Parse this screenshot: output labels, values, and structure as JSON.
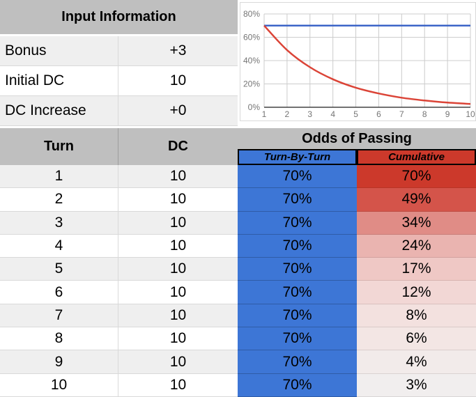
{
  "input_info": {
    "title": "Input Information",
    "rows": [
      {
        "label": "Bonus",
        "value": "+3"
      },
      {
        "label": "Initial DC",
        "value": "10"
      },
      {
        "label": "DC Increase",
        "value": "+0"
      }
    ]
  },
  "table": {
    "col_turn": "Turn",
    "col_dc": "DC",
    "odds_header": "Odds of Passing",
    "sub_turn_by_turn": "Turn-By-Turn",
    "sub_cumulative": "Cumulative",
    "rows": [
      {
        "turn": "1",
        "dc": "10",
        "turn_by_turn": "70%",
        "cumulative": "70%",
        "cum_bg": "#cc392b"
      },
      {
        "turn": "2",
        "dc": "10",
        "turn_by_turn": "70%",
        "cumulative": "49%",
        "cum_bg": "#d4544a"
      },
      {
        "turn": "3",
        "dc": "10",
        "turn_by_turn": "70%",
        "cumulative": "34%",
        "cum_bg": "#e08c86"
      },
      {
        "turn": "4",
        "dc": "10",
        "turn_by_turn": "70%",
        "cumulative": "24%",
        "cum_bg": "#eab4b0"
      },
      {
        "turn": "5",
        "dc": "10",
        "turn_by_turn": "70%",
        "cumulative": "17%",
        "cum_bg": "#efc8c5"
      },
      {
        "turn": "6",
        "dc": "10",
        "turn_by_turn": "70%",
        "cumulative": "12%",
        "cum_bg": "#f2d7d5"
      },
      {
        "turn": "7",
        "dc": "10",
        "turn_by_turn": "70%",
        "cumulative": "8%",
        "cum_bg": "#f3e1df"
      },
      {
        "turn": "8",
        "dc": "10",
        "turn_by_turn": "70%",
        "cumulative": "6%",
        "cum_bg": "#f3e6e4"
      },
      {
        "turn": "9",
        "dc": "10",
        "turn_by_turn": "70%",
        "cumulative": "4%",
        "cum_bg": "#f2ebea"
      },
      {
        "turn": "10",
        "dc": "10",
        "turn_by_turn": "70%",
        "cumulative": "3%",
        "cum_bg": "#f1eeee"
      }
    ]
  },
  "colors": {
    "header_gray": "#bfbfbf",
    "header_gray_divider": "#9e9e9e",
    "row_band_odd": "#efefef",
    "row_band_even": "#ffffff",
    "grid_border": "#d9d9d9",
    "blue_fill": "#3d76d6",
    "red_header_fill": "#cc392b",
    "subheader_border": "#000000",
    "chart_grid": "#cccccc",
    "chart_axis": "#424242",
    "chart_text": "#757575"
  },
  "chart_data": {
    "type": "line",
    "title": "",
    "xlabel": "",
    "ylabel": "",
    "x": [
      1,
      2,
      3,
      4,
      5,
      6,
      7,
      8,
      9,
      10
    ],
    "xtick_labels": [
      "1",
      "2",
      "3",
      "4",
      "5",
      "6",
      "7",
      "8",
      "9",
      "10"
    ],
    "xlim": [
      1,
      10
    ],
    "ylim": [
      0,
      80
    ],
    "yticks": [
      0,
      20,
      40,
      60,
      80
    ],
    "ytick_labels": [
      "0%",
      "20%",
      "40%",
      "60%",
      "80%"
    ],
    "grid": true,
    "legend": "none",
    "series": [
      {
        "name": "Turn-By-Turn",
        "color": "#3c64c8",
        "values": [
          70,
          70,
          70,
          70,
          70,
          70,
          70,
          70,
          70,
          70
        ]
      },
      {
        "name": "Cumulative",
        "color": "#db4437",
        "values": [
          70,
          49,
          34.3,
          24,
          16.8,
          11.8,
          8.2,
          5.8,
          4,
          2.8
        ]
      }
    ]
  }
}
